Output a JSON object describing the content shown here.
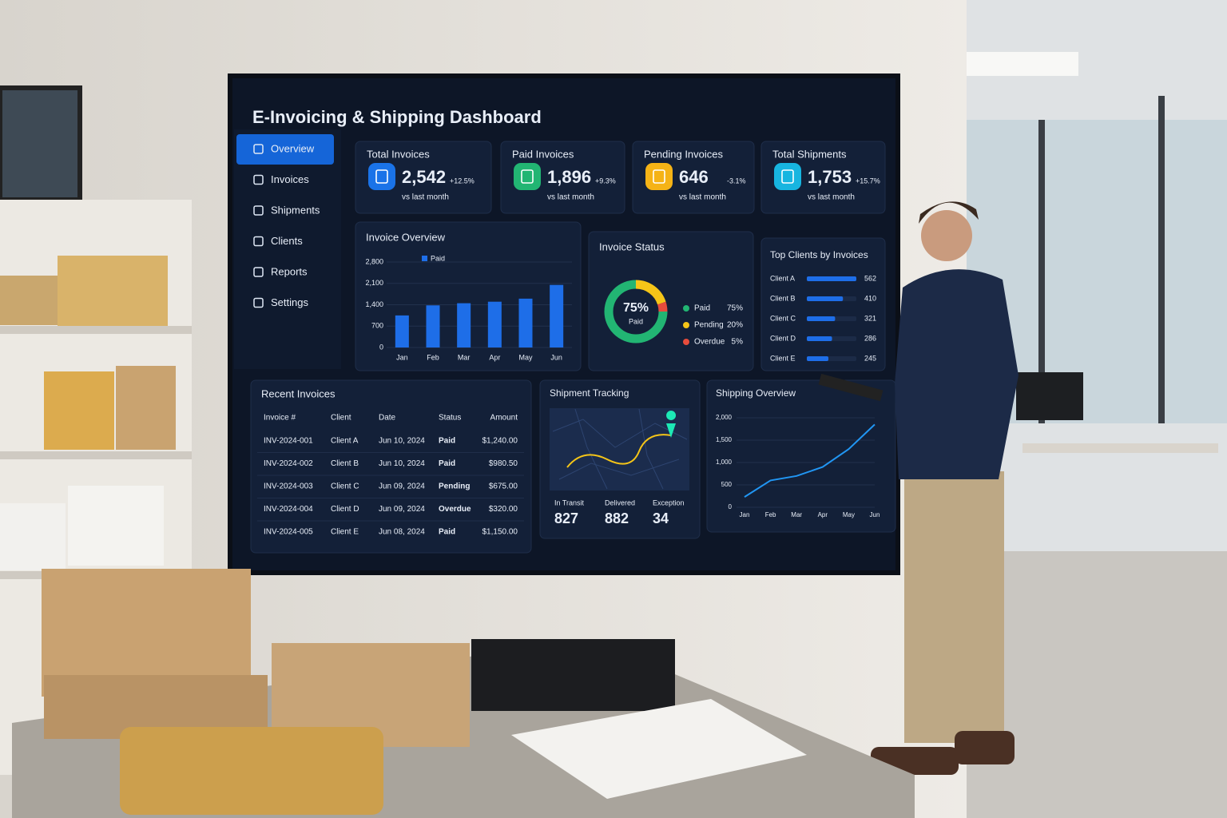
{
  "header": {
    "title": "E-Invoicing & Shipping Dashboard"
  },
  "nav": [
    "Overview",
    "Invoices",
    "Shipments",
    "Clients",
    "Reports",
    "Settings"
  ],
  "kpis": [
    {
      "label": "Total Invoices",
      "value": "2,542",
      "change": "+12.5%",
      "note": "vs last month",
      "color": "#1a73e8",
      "trend_color": "#2ecc71"
    },
    {
      "label": "Paid Invoices",
      "value": "1,896",
      "change": "+9.3%",
      "note": "vs last month",
      "color": "#22b573",
      "trend_color": "#2ecc71"
    },
    {
      "label": "Pending Invoices",
      "value": "646",
      "change": "-3.1%",
      "note": "vs last month",
      "color": "#f5b316",
      "trend_color": "#e74c3c"
    },
    {
      "label": "Total Shipments",
      "value": "1,753",
      "change": "+15.7%",
      "note": "vs last month",
      "color": "#17b5e0",
      "trend_color": "#2ecc71"
    }
  ],
  "invoice_overview": {
    "type": "bar",
    "title": "Invoice Overview",
    "categories": [
      "Jan",
      "Feb",
      "Mar",
      "Apr",
      "May",
      "Jun"
    ],
    "series": [
      {
        "name": "Paid",
        "color": "#1e6ee8",
        "values": [
          1050,
          1380,
          1450,
          1500,
          1600,
          2050
        ]
      }
    ],
    "ylim": [
      0,
      2800
    ],
    "yticks": [
      0,
      700,
      {
        "value": 1400,
        "label": "1,400"
      },
      {
        "value": 2100,
        "label": "2,100"
      },
      {
        "value": 2800,
        "label": "2,800"
      }
    ]
  },
  "invoice_status": {
    "type": "pie",
    "title": "Invoice Status",
    "center_label": "75%",
    "center_caption": "Paid",
    "categories": [
      "Paid",
      "Pending",
      "Overdue"
    ],
    "values": [
      75,
      20,
      5
    ],
    "value_labels": [
      "75%",
      "20%",
      "5%"
    ],
    "colors": [
      "#22b573",
      "#f5c518",
      "#e74c3c"
    ]
  },
  "top_clients": {
    "type": "hbar",
    "title": "Top Clients by Invoices",
    "categories": [
      "Client A",
      "Client B",
      "Client C",
      "Client D",
      "Client E"
    ],
    "values": [
      562,
      410,
      321,
      286,
      245
    ],
    "color": "#1e6ee8"
  },
  "recent_invoices": {
    "title": "Recent Invoices",
    "columns": [
      "Invoice #",
      "Client",
      "Date",
      "Status",
      "Amount"
    ],
    "rows": [
      [
        "INV-2024-001",
        "Client A",
        "Jun 10, 2024",
        "Paid",
        "$1,240.00"
      ],
      [
        "INV-2024-002",
        "Client B",
        "Jun 10, 2024",
        "Paid",
        "$980.50"
      ],
      [
        "INV-2024-003",
        "Client C",
        "Jun 09, 2024",
        "Pending",
        "$675.00"
      ],
      [
        "INV-2024-004",
        "Client D",
        "Jun 09, 2024",
        "Overdue",
        "$320.00"
      ],
      [
        "INV-2024-005",
        "Client E",
        "Jun 08, 2024",
        "Paid",
        "$1,150.00"
      ]
    ],
    "status_colors": [
      "#2ecc71",
      "#2ecc71",
      "#f5c518",
      "#e74c3c",
      "#2ecc71"
    ]
  },
  "shipment_tracking": {
    "title": "Shipment Tracking",
    "stats": [
      {
        "label": "In Transit",
        "value": 827,
        "color": "#29b6f6"
      },
      {
        "label": "Delivered",
        "value": 882,
        "color": "#2ecc71"
      },
      {
        "label": "Exception",
        "value": 34,
        "color": "#f39c12"
      }
    ]
  },
  "shipping_overview": {
    "type": "line",
    "title": "Shipping Overview",
    "categories": [
      "Jan",
      "Feb",
      "Mar",
      "Apr",
      "May",
      "Jun"
    ],
    "values": [
      230,
      600,
      700,
      900,
      1300,
      1850
    ],
    "color": "#2196f3",
    "ylim": [
      0,
      2000
    ],
    "yticks": [
      0,
      500,
      {
        "value": 1000,
        "label": "1,000"
      },
      {
        "value": 1500,
        "label": "1,500"
      },
      {
        "value": 2000,
        "label": "2,000"
      }
    ]
  }
}
